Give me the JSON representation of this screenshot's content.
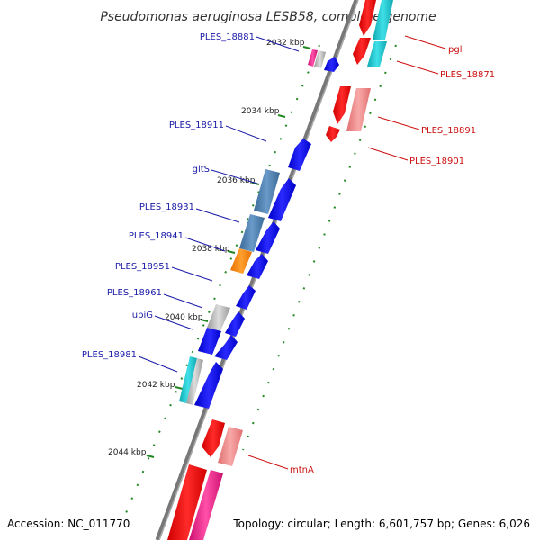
{
  "title": "Pseudomonas aeruginosa LESB58, complete genome",
  "footer": {
    "accession": "Accession: NC_011770",
    "topology": "Topology: circular; Length: 6,601,757 bp; Genes: 6,026"
  },
  "kbp_ticks": [
    "2032 kbp",
    "2034 kbp",
    "2036 kbp",
    "2038 kbp",
    "2040 kbp",
    "2042 kbp",
    "2044 kbp"
  ],
  "left_labels": [
    "PLES_18881",
    "PLES_18911",
    "gltS",
    "PLES_18931",
    "PLES_18941",
    "PLES_18951",
    "PLES_18961",
    "ubiG",
    "PLES_18981"
  ],
  "right_labels": [
    "pgl",
    "PLES_18871",
    "PLES_18891",
    "PLES_18901",
    "mtnA"
  ],
  "colors": {
    "forward_cds": "#0000ee",
    "reverse_cds": "#ee0000",
    "pink": "#f08a8a",
    "cyan": "#22c8d0",
    "steel": "#4d7fb0",
    "orange": "#ff8800",
    "gray": "#bbbbbb",
    "magenta": "#ee2288",
    "tick_green": "#228822",
    "backbone": "#777777"
  }
}
